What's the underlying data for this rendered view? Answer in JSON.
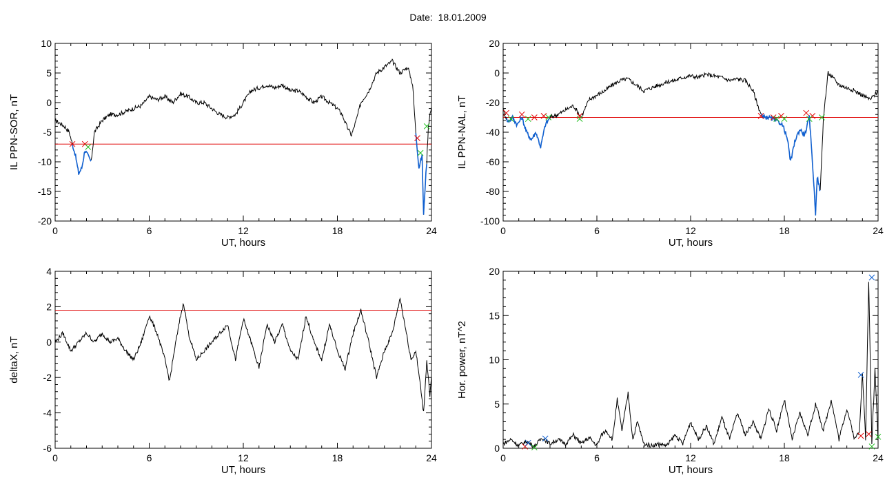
{
  "page": {
    "title": "Date:  18.01.2009"
  },
  "colors": {
    "line": "#000000",
    "threshold": "#e00000",
    "highlight": "#1060d0",
    "start_marker": "#e00000",
    "end_marker": "#20c020",
    "peak_marker": "#1060d0"
  },
  "chart_data": [
    {
      "id": "sor",
      "type": "line",
      "xlabel": "UT, hours",
      "ylabel": "IL PPN-SOR, nT",
      "xlim": [
        0,
        24
      ],
      "ylim": [
        -20,
        10
      ],
      "xticks": [
        0,
        6,
        12,
        18,
        24
      ],
      "yticks": [
        10,
        5,
        0,
        -5,
        -10,
        -15,
        -20
      ],
      "threshold": -7,
      "series": [
        {
          "values_x": [
            0,
            0.3,
            0.6,
            0.9,
            1.1,
            1.3,
            1.5,
            1.7,
            1.9,
            2.1,
            2.3,
            2.5,
            3,
            3.5,
            4,
            4.5,
            5,
            5.5,
            6,
            6.5,
            7,
            7.5,
            8,
            8.5,
            9,
            9.5,
            10,
            10.5,
            11,
            11.5,
            12,
            12.5,
            13,
            13.5,
            14,
            14.5,
            15,
            15.5,
            16,
            16.5,
            17,
            17.5,
            18,
            18.3,
            18.6,
            18.9,
            19.2,
            19.5,
            20,
            20.5,
            21,
            21.5,
            22,
            22.5,
            22.8,
            23,
            23.2,
            23.4,
            23.5,
            23.6,
            23.7,
            23.8,
            23.9,
            24
          ],
          "values_y": [
            -3,
            -3.5,
            -4,
            -5,
            -7,
            -9,
            -12,
            -11,
            -8,
            -9,
            -10,
            -5,
            -3,
            -2,
            -2,
            -1.5,
            -1,
            -0.5,
            1,
            0.5,
            1,
            0,
            1.5,
            1,
            0,
            0,
            -1,
            -2,
            -2.5,
            -2,
            0,
            2,
            2.5,
            3,
            2.5,
            3,
            2,
            2,
            1,
            0,
            1,
            0,
            -1,
            -2,
            -4,
            -5.5,
            -3,
            0,
            2,
            5,
            6,
            7,
            5,
            6,
            3,
            -5,
            -11,
            -9,
            -19,
            -14,
            -10,
            -4,
            -2,
            -1
          ]
        }
      ],
      "highlighted_intervals": [
        [
          1.1,
          2.3
        ],
        [
          23.0,
          23.7
        ]
      ],
      "start_markers": [
        [
          1.1,
          -7
        ],
        [
          1.9,
          -7
        ],
        [
          23.1,
          -6
        ]
      ],
      "end_markers": [
        [
          2.1,
          -7.5
        ],
        [
          23.3,
          -8.5
        ],
        [
          23.7,
          -4
        ]
      ]
    },
    {
      "id": "nal",
      "type": "line",
      "xlabel": "UT, hours",
      "ylabel": "IL PPN-NAL, nT",
      "xlim": [
        0,
        24
      ],
      "ylim": [
        -100,
        20
      ],
      "xticks": [
        0,
        6,
        12,
        18,
        24
      ],
      "yticks": [
        20,
        0,
        -20,
        -40,
        -60,
        -80,
        -100
      ],
      "threshold": -30,
      "series": [
        {
          "values_x": [
            0,
            0.3,
            0.6,
            0.9,
            1.2,
            1.5,
            1.8,
            2.1,
            2.4,
            2.7,
            3,
            3.5,
            4,
            4.5,
            5,
            5.5,
            6,
            6.5,
            7,
            7.5,
            8,
            8.5,
            9,
            9.5,
            10,
            10.5,
            11,
            11.5,
            12,
            12.5,
            13,
            13.5,
            14,
            14.5,
            15,
            15.5,
            16,
            16.3,
            16.6,
            17,
            17.4,
            17.8,
            18,
            18.2,
            18.4,
            18.7,
            19,
            19.3,
            19.6,
            19.8,
            20,
            20.1,
            20.3,
            20.5,
            20.8,
            21,
            21.5,
            22,
            22.5,
            23,
            23.5,
            24
          ],
          "values_y": [
            -25,
            -33,
            -30,
            -35,
            -30,
            -40,
            -45,
            -40,
            -50,
            -35,
            -30,
            -28,
            -25,
            -22,
            -30,
            -18,
            -15,
            -12,
            -8,
            -5,
            -4,
            -8,
            -12,
            -10,
            -8,
            -6,
            -5,
            -3,
            -2,
            -3,
            -1,
            -2,
            -3,
            -5,
            -4,
            -5,
            -12,
            -22,
            -30,
            -30,
            -32,
            -34,
            -38,
            -45,
            -60,
            -45,
            -38,
            -42,
            -30,
            -60,
            -95,
            -70,
            -80,
            -30,
            0,
            -2,
            -8,
            -10,
            -12,
            -15,
            -18,
            -12
          ]
        }
      ],
      "highlighted_intervals": [
        [
          0.2,
          3.0
        ],
        [
          16.5,
          20.3
        ]
      ],
      "start_markers": [
        [
          0.2,
          -27
        ],
        [
          1.2,
          -28
        ],
        [
          2.0,
          -30
        ],
        [
          2.6,
          -29
        ],
        [
          4.9,
          -29
        ],
        [
          16.5,
          -29
        ],
        [
          17.3,
          -30
        ],
        [
          17.8,
          -29
        ],
        [
          19.4,
          -27
        ],
        [
          19.8,
          -29
        ]
      ],
      "end_markers": [
        [
          0.5,
          -31
        ],
        [
          1.6,
          -31
        ],
        [
          2.9,
          -30
        ],
        [
          4.9,
          -31
        ],
        [
          17.5,
          -31
        ],
        [
          18.0,
          -31
        ],
        [
          19.6,
          -31
        ],
        [
          20.4,
          -30
        ]
      ]
    },
    {
      "id": "deltax",
      "type": "line",
      "xlabel": "UT, hours",
      "ylabel": "deltaX, nT",
      "xlim": [
        0,
        24
      ],
      "ylim": [
        -6,
        4
      ],
      "xticks": [
        0,
        6,
        12,
        18,
        24
      ],
      "yticks": [
        4,
        2,
        0,
        -2,
        -4,
        -6
      ],
      "threshold": 1.8,
      "series": [
        {
          "values_x": [
            0,
            0.5,
            1,
            1.5,
            2,
            2.5,
            3,
            3.5,
            4,
            4.5,
            5,
            5.5,
            6,
            6.5,
            7,
            7.3,
            7.6,
            8,
            8.2,
            8.5,
            9,
            9.5,
            10,
            10.5,
            11,
            11.5,
            12,
            12.5,
            13,
            13.5,
            14,
            14.5,
            15,
            15.5,
            16,
            16.5,
            17,
            17.5,
            18,
            18.5,
            19,
            19.5,
            20,
            20.5,
            21,
            21.5,
            22,
            22.4,
            22.7,
            23,
            23.3,
            23.5,
            23.7,
            23.9,
            24
          ],
          "values_y": [
            0,
            0.5,
            -0.5,
            0,
            0.5,
            0,
            0.5,
            0,
            0.2,
            -0.5,
            -1,
            0,
            1.5,
            0.5,
            -1,
            -2.2,
            -0.5,
            1.5,
            2.2,
            0.5,
            -1,
            -0.5,
            0,
            0.5,
            1,
            -1,
            1.3,
            0,
            -1.5,
            1,
            0,
            1,
            -0.5,
            -1,
            1.5,
            0,
            -1,
            1,
            -0.5,
            -1.5,
            0.5,
            1.8,
            0,
            -2,
            -0.5,
            0.5,
            2.5,
            0.5,
            -1,
            -0.5,
            -2.5,
            -4,
            -1,
            -3,
            -2
          ]
        }
      ],
      "highlighted_intervals": [],
      "start_markers": [],
      "end_markers": []
    },
    {
      "id": "power",
      "type": "line",
      "xlabel": "UT, hours",
      "ylabel": "Hor. power, nT^2",
      "xlim": [
        0,
        24
      ],
      "ylim": [
        0,
        20
      ],
      "xticks": [
        0,
        6,
        12,
        18,
        24
      ],
      "yticks": [
        20,
        15,
        10,
        5,
        0
      ],
      "threshold": null,
      "series": [
        {
          "values_x": [
            0,
            0.5,
            1,
            1.5,
            2,
            2.5,
            3,
            3.5,
            4,
            4.5,
            5,
            5.5,
            6,
            6.3,
            6.6,
            7,
            7.3,
            7.6,
            8,
            8.3,
            8.6,
            9,
            9.5,
            10,
            10.5,
            11,
            11.5,
            12,
            12.5,
            13,
            13.5,
            14,
            14.5,
            15,
            15.5,
            16,
            16.5,
            17,
            17.5,
            18,
            18.5,
            19,
            19.5,
            20,
            20.5,
            21,
            21.5,
            22,
            22.5,
            22.8,
            23,
            23.2,
            23.4,
            23.6,
            23.8,
            24
          ],
          "values_y": [
            0.5,
            1,
            0.3,
            0.8,
            0.2,
            1.2,
            0.5,
            1,
            0.5,
            1.5,
            0.5,
            1.2,
            0.3,
            1.5,
            2,
            1,
            5.5,
            2,
            6.2,
            1,
            3,
            0.5,
            0.3,
            0.5,
            0.3,
            1.5,
            0.5,
            3,
            1,
            2.5,
            0.5,
            3.5,
            1,
            4,
            1.5,
            3,
            1,
            4.5,
            2,
            5.5,
            1,
            4,
            1.5,
            5,
            2,
            5.5,
            1,
            4.5,
            1,
            2,
            8.5,
            1,
            19,
            0.5,
            9,
            1
          ]
        }
      ],
      "highlighted_intervals": [],
      "start_markers": [
        [
          1.4,
          0.2
        ],
        [
          22.9,
          1.4
        ],
        [
          23.4,
          1.6
        ]
      ],
      "end_markers": [
        [
          2.0,
          0.1
        ],
        [
          23.6,
          0.2
        ],
        [
          24,
          1.3
        ]
      ],
      "peak_markers": [
        [
          1.6,
          0.6
        ],
        [
          2.7,
          1.1
        ],
        [
          22.9,
          8.3
        ],
        [
          23.6,
          19.3
        ]
      ]
    }
  ]
}
